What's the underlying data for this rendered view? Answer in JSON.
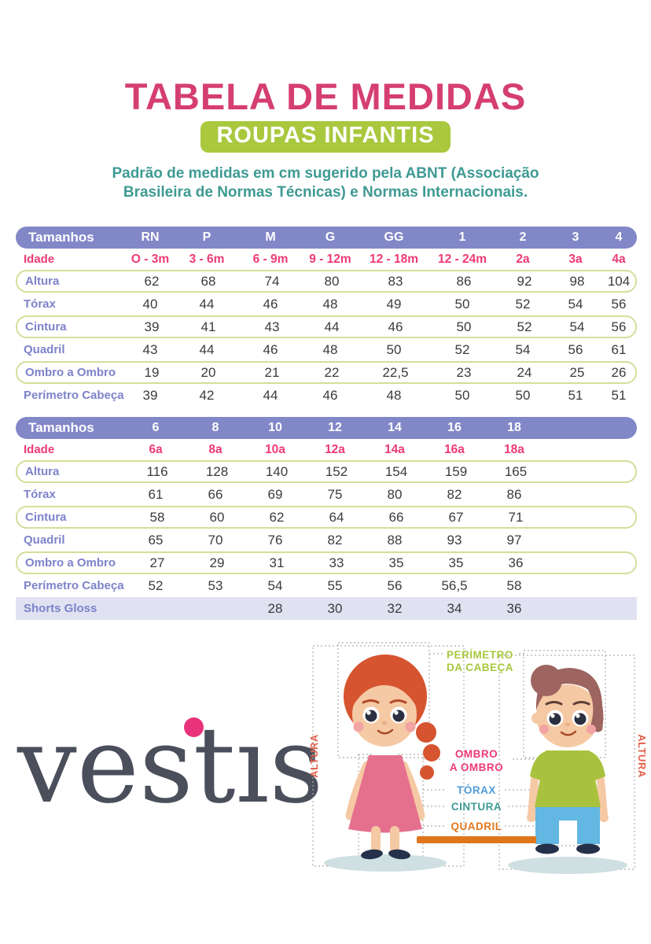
{
  "header": {
    "title": "TABELA DE MEDIDAS",
    "badge": "ROUPAS INFANTIS",
    "subtitle": "Padrão de medidas em cm sugerido pela ABNT (Associação Brasileira de Normas Técnicas) e Normas Internacionais."
  },
  "chart_data": [
    {
      "type": "table",
      "header_label": "Tamanhos",
      "columns": [
        "RN",
        "P",
        "M",
        "G",
        "GG",
        "1",
        "2",
        "3",
        "4"
      ],
      "age_row": {
        "label": "Idade",
        "values": [
          "O - 3m",
          "3 - 6m",
          "6 - 9m",
          "9 - 12m",
          "12 - 18m",
          "12 - 24m",
          "2a",
          "3a",
          "4a"
        ]
      },
      "rows": [
        {
          "label": "Altura",
          "boxed": true,
          "values": [
            "62",
            "68",
            "74",
            "80",
            "83",
            "86",
            "92",
            "98",
            "104"
          ]
        },
        {
          "label": "Tórax",
          "boxed": false,
          "values": [
            "40",
            "44",
            "46",
            "48",
            "49",
            "50",
            "52",
            "54",
            "56"
          ]
        },
        {
          "label": "Cintura",
          "boxed": true,
          "values": [
            "39",
            "41",
            "43",
            "44",
            "46",
            "50",
            "52",
            "54",
            "56"
          ]
        },
        {
          "label": "Quadril",
          "boxed": false,
          "values": [
            "43",
            "44",
            "46",
            "48",
            "50",
            "52",
            "54",
            "56",
            "61"
          ]
        },
        {
          "label": "Ombro a Ombro",
          "boxed": true,
          "values": [
            "19",
            "20",
            "21",
            "22",
            "22,5",
            "23",
            "24",
            "25",
            "26"
          ]
        },
        {
          "label": "Perímetro Cabeça",
          "boxed": false,
          "values": [
            "39",
            "42",
            "44",
            "46",
            "48",
            "50",
            "50",
            "51",
            "51"
          ]
        }
      ]
    },
    {
      "type": "table",
      "header_label": "Tamanhos",
      "columns": [
        "6",
        "8",
        "10",
        "12",
        "14",
        "16",
        "18"
      ],
      "age_row": {
        "label": "Idade",
        "values": [
          "6a",
          "8a",
          "10a",
          "12a",
          "14a",
          "16a",
          "18a"
        ]
      },
      "rows": [
        {
          "label": "Altura",
          "boxed": true,
          "values": [
            "116",
            "128",
            "140",
            "152",
            "154",
            "159",
            "165"
          ]
        },
        {
          "label": "Tórax",
          "boxed": false,
          "values": [
            "61",
            "66",
            "69",
            "75",
            "80",
            "82",
            "86"
          ]
        },
        {
          "label": "Cintura",
          "boxed": true,
          "values": [
            "58",
            "60",
            "62",
            "64",
            "66",
            "67",
            "71"
          ]
        },
        {
          "label": "Quadril",
          "boxed": false,
          "values": [
            "65",
            "70",
            "76",
            "82",
            "88",
            "93",
            "97"
          ]
        },
        {
          "label": "Ombro a Ombro",
          "boxed": true,
          "values": [
            "27",
            "29",
            "31",
            "33",
            "35",
            "35",
            "36"
          ]
        },
        {
          "label": "Perímetro Cabeça",
          "boxed": false,
          "values": [
            "52",
            "53",
            "54",
            "55",
            "56",
            "56,5",
            "58"
          ]
        },
        {
          "label": "Shorts Gloss",
          "boxed": false,
          "highlight": true,
          "values": [
            "",
            "",
            "28",
            "30",
            "32",
            "34",
            "36"
          ]
        }
      ]
    }
  ],
  "logo": {
    "part1": "vest",
    "dotless_i": "ı",
    "part2": "s"
  },
  "diagram": {
    "perimetro_line1": "PERÍMETRO",
    "perimetro_line2": "DA CABEÇA",
    "ombro_line1": "OMBRO",
    "ombro_line2": "A OMBRO",
    "torax": "TÓRAX",
    "cintura": "CINTURA",
    "quadril": "QUADRIL",
    "altura_left": "ALTURA",
    "altura_right": "ALTURA"
  },
  "colors": {
    "title_pink": "#d53e72",
    "badge_green": "#a9c83e",
    "subtitle_teal": "#3e9a93",
    "table_header_purple": "#8287c8",
    "row_label_purple": "#7d83c9",
    "age_pink": "#ed3a74",
    "row_box_border": "#d3df9a",
    "highlight_row_bg": "#e0e2f2",
    "value_text": "#3b3b3b",
    "logo_gray": "#4a4f5b",
    "logo_dot_pink": "#e9327c",
    "label_torax_blue": "#4f9bd9",
    "label_quadril_orange": "#e0761c",
    "label_altura_coral": "#e2604b"
  }
}
